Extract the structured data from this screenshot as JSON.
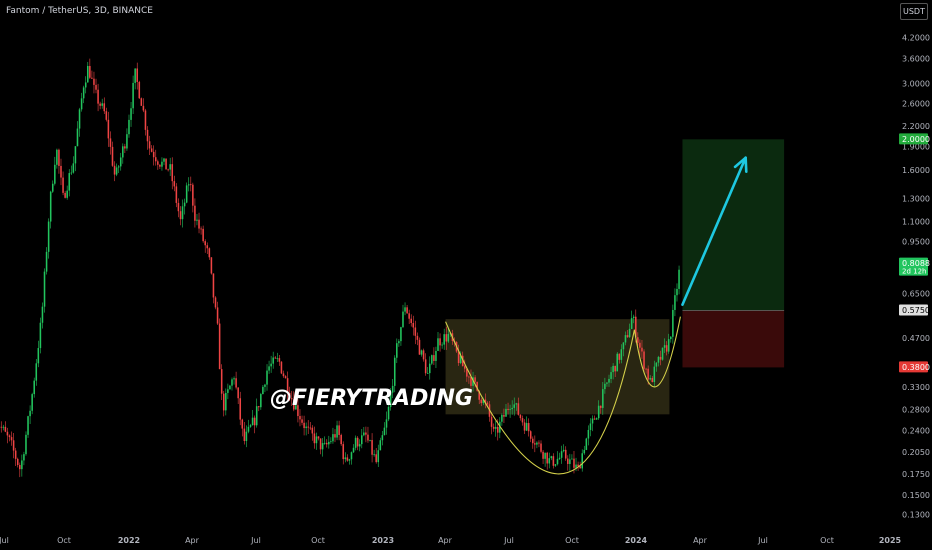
{
  "header": {
    "title": "Fantom / TetherUS, 3D, BINANCE",
    "currency": "USDT"
  },
  "watermark": "@FIERYTRADING",
  "colors": {
    "up": "#26a69a",
    "upBright": "#22c55e",
    "down": "#ef4444",
    "target_zone": "#0b2a0f",
    "stop_zone": "#3a0a0a",
    "pattern_fill": "#2e2a14",
    "arrow": "#1ec8e0",
    "cup_line": "#d4d04a",
    "axis_text": "#b2b5be"
  },
  "chart_data": {
    "type": "candlestick",
    "y_scale": "log",
    "ylim": [
      0.118,
      4.7
    ],
    "x_ticks": [
      "Jul",
      "Oct",
      "2022",
      "Apr",
      "Jul",
      "Oct",
      "2023",
      "Apr",
      "Jul",
      "Oct",
      "2024",
      "Apr",
      "Jul",
      "Oct",
      "2025"
    ],
    "y_ticks": [
      4.2,
      3.6,
      3.0,
      2.6,
      2.2,
      1.9,
      1.6,
      1.3,
      1.1,
      0.95,
      0.8088,
      0.65,
      0.575,
      0.47,
      0.38,
      0.33,
      0.28,
      0.24,
      0.205,
      0.175,
      0.15,
      0.13
    ],
    "y_tick_labels": [
      "4.2000",
      "3.6000",
      "3.0000",
      "2.6000",
      "2.2000",
      "1.9000",
      "1.6000",
      "1.3000",
      "1.1000",
      "0.9500",
      "0.8088",
      "0.6500",
      "0.5750",
      "0.4700",
      "0.3800",
      "0.3300",
      "0.2800",
      "0.2400",
      "0.2050",
      "0.1750",
      "0.1500",
      "0.1300"
    ],
    "price_labels": [
      {
        "value": 2.0,
        "text": "2.0000",
        "color": "#22ab3c"
      },
      {
        "value": 0.8088,
        "text": "0.8088",
        "sub": "2d 12h",
        "color": "#22c55e"
      },
      {
        "value": 0.575,
        "text": "0.5750",
        "color": "#e0e0e0"
      },
      {
        "value": 0.38,
        "text": "0.3800",
        "color": "#e53935"
      }
    ],
    "position": {
      "entry": 0.575,
      "target": 2.0,
      "stop": 0.38
    },
    "close_path": [
      [
        "2021-06-15",
        0.27
      ],
      [
        "2021-07-10",
        0.22
      ],
      [
        "2021-07-25",
        0.18
      ],
      [
        "2021-08-10",
        0.3
      ],
      [
        "2021-08-25",
        0.55
      ],
      [
        "2021-09-05",
        1.2
      ],
      [
        "2021-09-15",
        1.9
      ],
      [
        "2021-09-25",
        1.3
      ],
      [
        "2021-10-10",
        1.7
      ],
      [
        "2021-10-25",
        3.0
      ],
      [
        "2021-11-01",
        3.4
      ],
      [
        "2021-11-10",
        2.8
      ],
      [
        "2021-11-25",
        2.4
      ],
      [
        "2021-12-10",
        1.5
      ],
      [
        "2021-12-25",
        2.0
      ],
      [
        "2022-01-08",
        3.2
      ],
      [
        "2022-01-18",
        2.6
      ],
      [
        "2022-01-28",
        1.9
      ],
      [
        "2022-02-12",
        1.7
      ],
      [
        "2022-02-28",
        1.6
      ],
      [
        "2022-03-15",
        1.1
      ],
      [
        "2022-03-28",
        1.5
      ],
      [
        "2022-04-05",
        1.15
      ],
      [
        "2022-04-25",
        0.85
      ],
      [
        "2022-05-08",
        0.5
      ],
      [
        "2022-05-15",
        0.28
      ],
      [
        "2022-06-01",
        0.36
      ],
      [
        "2022-06-15",
        0.22
      ],
      [
        "2022-07-01",
        0.26
      ],
      [
        "2022-07-20",
        0.38
      ],
      [
        "2022-08-05",
        0.4
      ],
      [
        "2022-08-25",
        0.3
      ],
      [
        "2022-09-15",
        0.24
      ],
      [
        "2022-10-10",
        0.21
      ],
      [
        "2022-10-30",
        0.24
      ],
      [
        "2022-11-10",
        0.19
      ],
      [
        "2022-11-25",
        0.22
      ],
      [
        "2022-12-10",
        0.23
      ],
      [
        "2022-12-25",
        0.19
      ],
      [
        "2023-01-10",
        0.26
      ],
      [
        "2023-01-25",
        0.45
      ],
      [
        "2023-02-05",
        0.6
      ],
      [
        "2023-02-20",
        0.48
      ],
      [
        "2023-03-10",
        0.36
      ],
      [
        "2023-03-25",
        0.46
      ],
      [
        "2023-04-10",
        0.48
      ],
      [
        "2023-04-25",
        0.4
      ],
      [
        "2023-05-15",
        0.34
      ],
      [
        "2023-06-05",
        0.28
      ],
      [
        "2023-06-15",
        0.23
      ],
      [
        "2023-07-10",
        0.3
      ],
      [
        "2023-07-25",
        0.26
      ],
      [
        "2023-08-15",
        0.22
      ],
      [
        "2023-09-05",
        0.19
      ],
      [
        "2023-09-25",
        0.2
      ],
      [
        "2023-10-15",
        0.18
      ],
      [
        "2023-10-25",
        0.22
      ],
      [
        "2023-11-10",
        0.27
      ],
      [
        "2023-12-01",
        0.36
      ],
      [
        "2023-12-20",
        0.44
      ],
      [
        "2024-01-02",
        0.55
      ],
      [
        "2024-01-15",
        0.42
      ],
      [
        "2024-01-28",
        0.34
      ],
      [
        "2024-02-10",
        0.4
      ],
      [
        "2024-02-25",
        0.46
      ],
      [
        "2024-03-05",
        0.64
      ],
      [
        "2024-03-12",
        0.8088
      ]
    ],
    "annotations": {
      "pattern_box": {
        "x0": "2023-04-05",
        "x1": "2024-02-25",
        "y0": 0.27,
        "y1": 0.54
      },
      "cup": {
        "left": [
          "2023-04-05",
          0.53
        ],
        "bottom": [
          "2023-09-15",
          0.175
        ],
        "right": [
          "2024-01-05",
          0.5
        ]
      },
      "handle": {
        "left": [
          "2024-01-05",
          0.5
        ],
        "bottom": [
          "2024-02-05",
          0.33
        ],
        "right": [
          "2024-03-12",
          0.55
        ]
      },
      "arrow": {
        "from": [
          "2024-03-15",
          0.6
        ],
        "to": [
          "2024-06-15",
          1.75
        ]
      },
      "box_x": [
        "2024-03-15",
        "2024-08-10"
      ]
    }
  }
}
